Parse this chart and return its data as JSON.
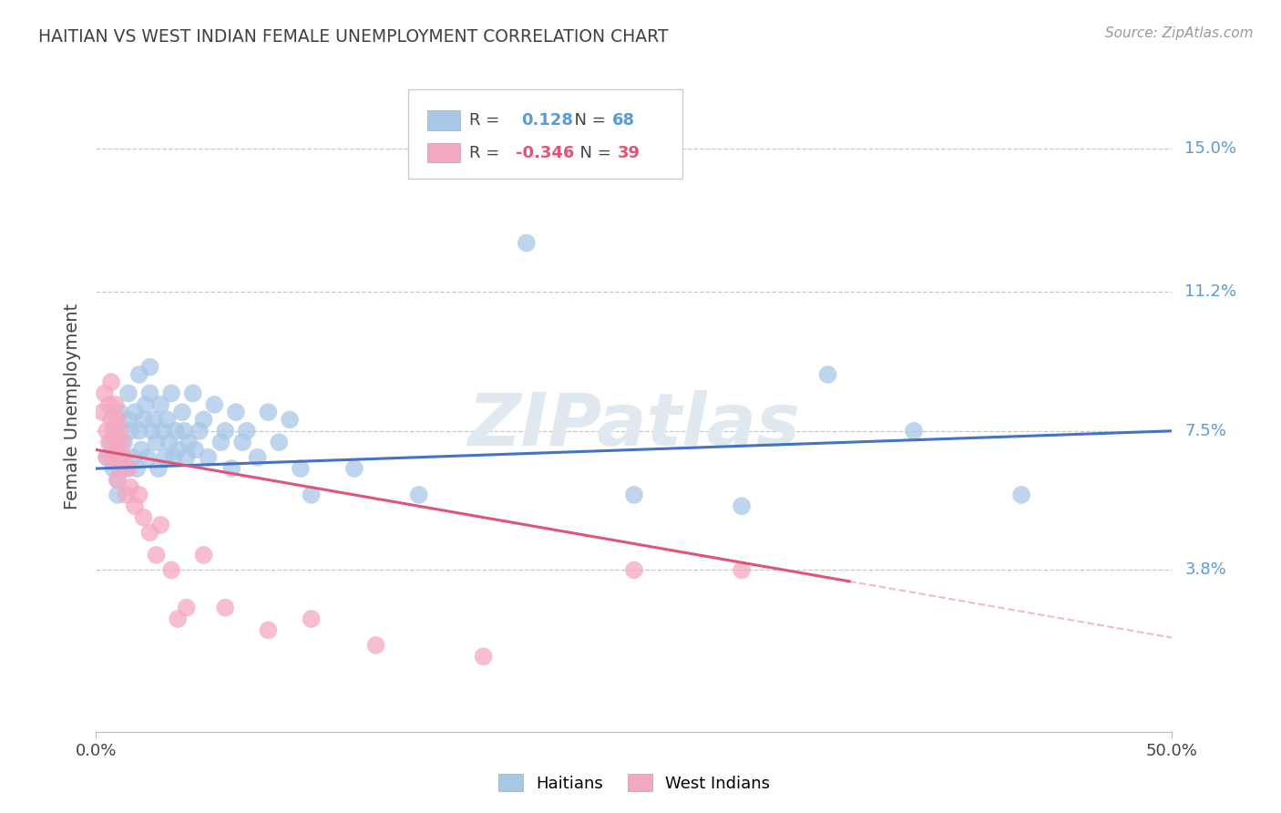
{
  "title": "HAITIAN VS WEST INDIAN FEMALE UNEMPLOYMENT CORRELATION CHART",
  "source": "Source: ZipAtlas.com",
  "ylabel": "Female Unemployment",
  "y_tick_labels": [
    "3.8%",
    "7.5%",
    "11.2%",
    "15.0%"
  ],
  "y_tick_values": [
    0.038,
    0.075,
    0.112,
    0.15
  ],
  "xlim": [
    0.0,
    0.5
  ],
  "ylim": [
    -0.005,
    0.168
  ],
  "haitian_R": "0.128",
  "haitian_N": "68",
  "west_indian_R": "-0.346",
  "west_indian_N": "39",
  "haitians_x": [
    0.005,
    0.007,
    0.008,
    0.009,
    0.01,
    0.01,
    0.01,
    0.011,
    0.012,
    0.013,
    0.014,
    0.015,
    0.015,
    0.016,
    0.017,
    0.018,
    0.019,
    0.02,
    0.02,
    0.021,
    0.022,
    0.023,
    0.024,
    0.025,
    0.025,
    0.026,
    0.027,
    0.028,
    0.029,
    0.03,
    0.031,
    0.032,
    0.033,
    0.034,
    0.035,
    0.036,
    0.037,
    0.038,
    0.04,
    0.041,
    0.042,
    0.043,
    0.045,
    0.046,
    0.048,
    0.05,
    0.052,
    0.055,
    0.058,
    0.06,
    0.063,
    0.065,
    0.068,
    0.07,
    0.075,
    0.08,
    0.085,
    0.09,
    0.095,
    0.1,
    0.12,
    0.15,
    0.2,
    0.25,
    0.3,
    0.34,
    0.38,
    0.43
  ],
  "haitians_y": [
    0.068,
    0.072,
    0.065,
    0.075,
    0.062,
    0.07,
    0.058,
    0.08,
    0.068,
    0.072,
    0.065,
    0.085,
    0.078,
    0.075,
    0.068,
    0.08,
    0.065,
    0.09,
    0.075,
    0.07,
    0.078,
    0.082,
    0.068,
    0.085,
    0.092,
    0.075,
    0.078,
    0.072,
    0.065,
    0.082,
    0.075,
    0.068,
    0.078,
    0.072,
    0.085,
    0.068,
    0.075,
    0.07,
    0.08,
    0.075,
    0.068,
    0.072,
    0.085,
    0.07,
    0.075,
    0.078,
    0.068,
    0.082,
    0.072,
    0.075,
    0.065,
    0.08,
    0.072,
    0.075,
    0.068,
    0.08,
    0.072,
    0.078,
    0.065,
    0.058,
    0.065,
    0.058,
    0.125,
    0.058,
    0.055,
    0.09,
    0.075,
    0.058
  ],
  "west_indians_x": [
    0.003,
    0.004,
    0.005,
    0.005,
    0.006,
    0.006,
    0.007,
    0.007,
    0.008,
    0.008,
    0.009,
    0.009,
    0.01,
    0.01,
    0.01,
    0.011,
    0.011,
    0.012,
    0.013,
    0.014,
    0.015,
    0.016,
    0.018,
    0.02,
    0.022,
    0.025,
    0.028,
    0.03,
    0.035,
    0.038,
    0.042,
    0.05,
    0.06,
    0.08,
    0.1,
    0.13,
    0.18,
    0.25,
    0.3
  ],
  "west_indians_y": [
    0.08,
    0.085,
    0.075,
    0.068,
    0.082,
    0.072,
    0.088,
    0.078,
    0.075,
    0.068,
    0.082,
    0.072,
    0.078,
    0.07,
    0.062,
    0.075,
    0.065,
    0.072,
    0.068,
    0.058,
    0.065,
    0.06,
    0.055,
    0.058,
    0.052,
    0.048,
    0.042,
    0.05,
    0.038,
    0.025,
    0.028,
    0.042,
    0.028,
    0.022,
    0.025,
    0.018,
    0.015,
    0.038,
    0.038
  ],
  "haitian_line_color": "#4472c4",
  "west_indian_line_color": "#e05478",
  "haitian_scatter_color": "#a8c8e8",
  "west_indian_scatter_color": "#f4a8c0",
  "background_color": "#ffffff",
  "grid_color": "#c8c8c8",
  "right_label_color": "#5b9bd5",
  "title_color": "#404040",
  "watermark_color": "#e0e8f0"
}
